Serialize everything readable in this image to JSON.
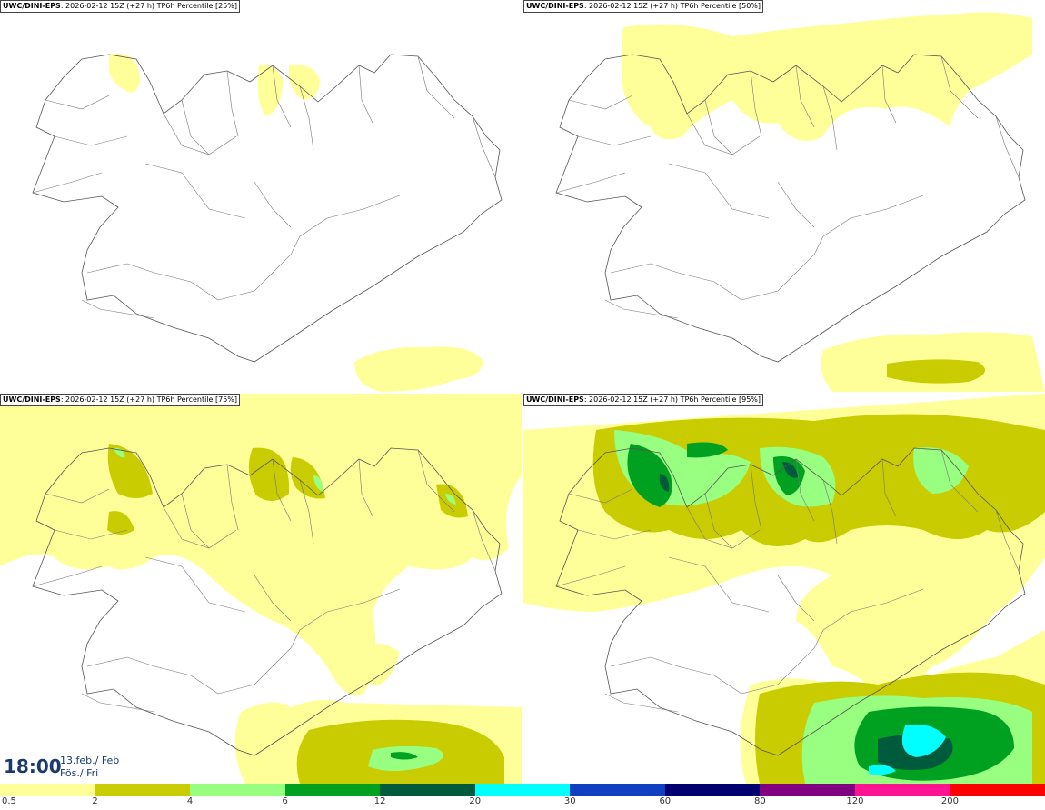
{
  "panels": [
    {
      "title_prefix": "UWC/DINI-EPS",
      "title_run": ": 2026-02-12 15Z (+27 h)",
      "title_field": " TP6h Percentile [25%]",
      "level": 0
    },
    {
      "title_prefix": "UWC/DINI-EPS",
      "title_run": ": 2026-02-12 15Z (+27 h)",
      "title_field": " TP6h Percentile [50%]",
      "level": 1
    },
    {
      "title_prefix": "UWC/DINI-EPS",
      "title_run": ": 2026-02-12 15Z (+27 h)",
      "title_field": " TP6h Percentile [75%]",
      "level": 2
    },
    {
      "title_prefix": "UWC/DINI-EPS",
      "title_run": ": 2026-02-12 15Z (+27 h)",
      "title_field": " TP6h Percentile [95%]",
      "level": 3
    }
  ],
  "valid_time": {
    "time": "18:00",
    "date_line1": "13.feb./ Feb",
    "date_line2": "Fös./ Fri"
  },
  "colorbar": {
    "labels": [
      "0.5",
      "2",
      "4",
      "6",
      "12",
      "20",
      "30",
      "60",
      "80",
      "120",
      "200"
    ],
    "colors": [
      "#ffff99",
      "#c8cc00",
      "#99ff80",
      "#00a020",
      "#005a3c",
      "#00ffff",
      "#1040c0",
      "#000070",
      "#800080",
      "#ff1493",
      "#ff0000"
    ]
  }
}
